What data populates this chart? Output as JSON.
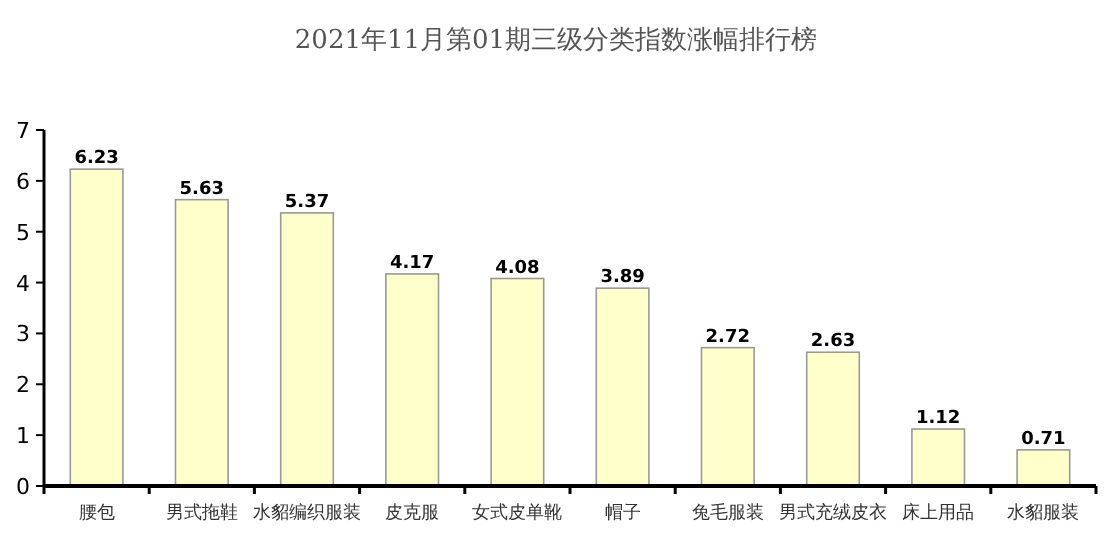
{
  "chart_data": {
    "type": "bar",
    "title": "2021年11月第01期三级分类指数涨幅排行榜",
    "categories": [
      "腰包",
      "男式拖鞋",
      "水貂编织服装",
      "皮克服",
      "女式皮单靴",
      "帽子",
      "兔毛服装",
      "男式充绒皮衣",
      "床上用品",
      "水貂服装"
    ],
    "values": [
      6.23,
      5.63,
      5.37,
      4.17,
      4.08,
      3.89,
      2.72,
      2.63,
      1.12,
      0.71
    ],
    "color": "#ffffcc",
    "ylim": [
      0,
      7
    ],
    "yticks": [
      0,
      1,
      2,
      3,
      4,
      5,
      6,
      7
    ],
    "data_labels": true,
    "grid": false
  }
}
